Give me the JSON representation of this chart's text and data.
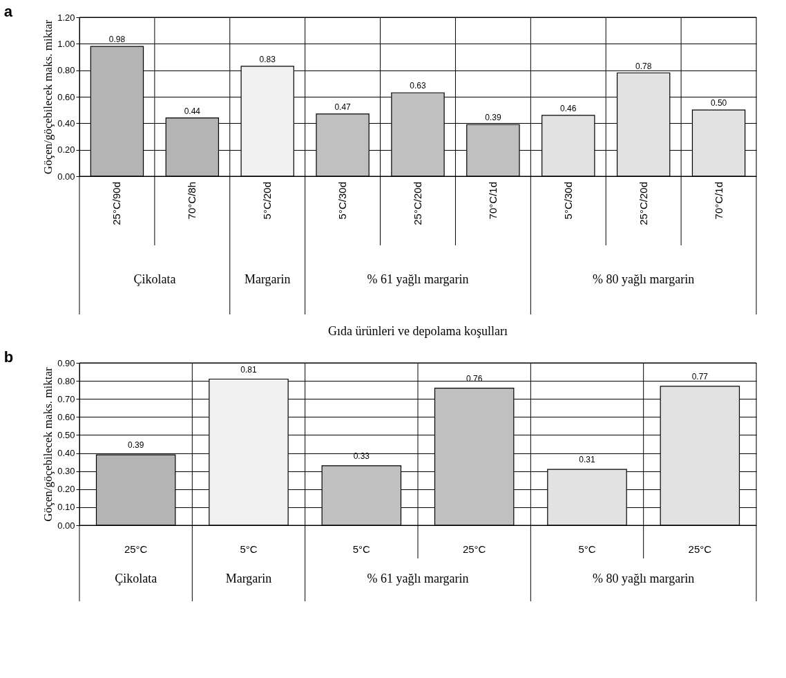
{
  "chart_data": [
    {
      "type": "bar",
      "title": "a",
      "ylabel": "Göçen/göçebilecek maks. miktar",
      "xlabel": "Gıda ürünleri ve depolama koşulları",
      "categories": [
        "25°C/90d",
        "70°C/8h",
        "5°C/20d",
        "5°C/30d",
        "25°C/20d",
        "70°C/1d",
        "5°C/30d",
        "25°C/20d",
        "70°C/1d"
      ],
      "values": [
        0.98,
        0.44,
        0.83,
        0.47,
        0.63,
        0.39,
        0.46,
        0.78,
        0.5
      ],
      "value_labels": [
        "0.98",
        "0.44",
        "0.83",
        "0.47",
        "0.63",
        "0.39",
        "0.46",
        "0.78",
        "0.50"
      ],
      "colors": [
        "#b4b4b4",
        "#b4b4b4",
        "#f0f0f0",
        "#c0c0c0",
        "#c0c0c0",
        "#c0c0c0",
        "#e2e2e2",
        "#e2e2e2",
        "#e2e2e2"
      ],
      "ylim": [
        0,
        1.2
      ],
      "yticks": [
        {
          "value": 0,
          "label": "0.00"
        },
        {
          "value": 0.2,
          "label": "0.20"
        },
        {
          "value": 0.4,
          "label": "0.40"
        },
        {
          "value": 0.6,
          "label": "0.60"
        },
        {
          "value": 0.8,
          "label": "0.80"
        },
        {
          "value": 1.0,
          "label": "1.00"
        },
        {
          "value": 1.2,
          "label": "1.20"
        }
      ],
      "grid": "y",
      "annotations": [
        "Çikolata",
        "Margarin",
        "% 61 yağlı margarin",
        "% 80 yağlı margarin"
      ]
    },
    {
      "type": "bar",
      "title": "b",
      "ylabel": "Göçen/göçebilecek maks. miktar",
      "categories": [
        "25°C",
        "5°C",
        "5°C",
        "25°C",
        "5°C",
        "25°C"
      ],
      "values": [
        0.39,
        0.81,
        0.33,
        0.76,
        0.31,
        0.77
      ],
      "value_labels": [
        "0.39",
        "0.81",
        "0.33",
        "0.76",
        "0.31",
        "0.77"
      ],
      "colors": [
        "#b4b4b4",
        "#f0f0f0",
        "#c0c0c0",
        "#c0c0c0",
        "#e2e2e2",
        "#e2e2e2"
      ],
      "ylim": [
        0,
        0.9
      ],
      "yticks": [
        {
          "value": 0,
          "label": "0.00"
        },
        {
          "value": 0.1,
          "label": "0.10"
        },
        {
          "value": 0.2,
          "label": "0.20"
        },
        {
          "value": 0.3,
          "label": "0.30"
        },
        {
          "value": 0.4,
          "label": "0.40"
        },
        {
          "value": 0.5,
          "label": "0.50"
        },
        {
          "value": 0.6,
          "label": "0.60"
        },
        {
          "value": 0.7,
          "label": "0.70"
        },
        {
          "value": 0.8,
          "label": "0.80"
        },
        {
          "value": 0.9,
          "label": "0.90"
        }
      ],
      "grid": "y",
      "annotations": [
        "Çikolata",
        "Margarin",
        "% 61 yağlı margarin",
        "% 80 yağlı margarin"
      ]
    }
  ]
}
